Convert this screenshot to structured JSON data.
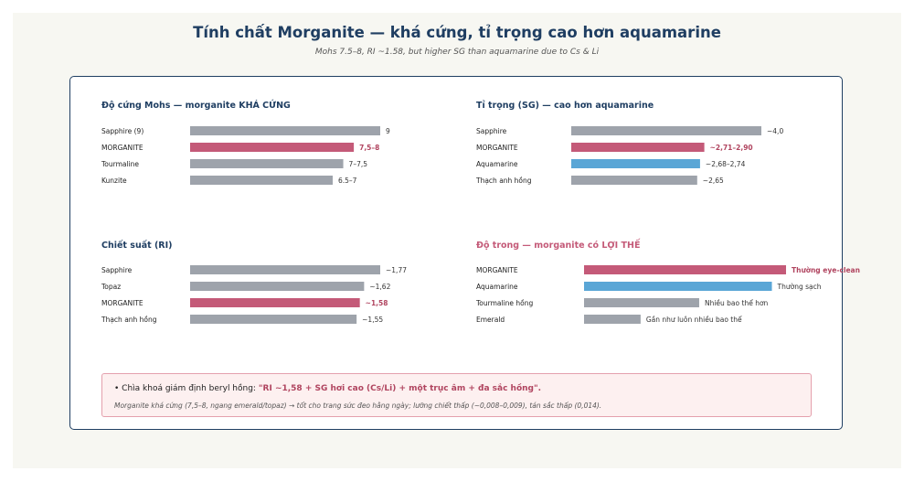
{
  "header": {
    "title": "Tính chất Morganite — khá cứng, tỉ trọng cao hơn aquamarine",
    "subtitle": "Mohs 7.5–8, RI ~1.58, but higher SG than aquamarine due to Cs & Li"
  },
  "colors": {
    "default_bar": "#9ea3ab",
    "highlight_bar": "#c45a78",
    "aquamarine_bar": "#5aa6d6",
    "panel_title": "#1f3e62",
    "highlight_text": "#b0445f"
  },
  "chart_data": [
    {
      "type": "bar",
      "orientation": "horizontal",
      "title": "Độ cứng Mohs — morganite KHÁ CỨNG",
      "title_color": "#1f3e62",
      "categories": [
        "Sapphire (9)",
        "MORGANITE",
        "Tourmaline",
        "Kunzite"
      ],
      "values": [
        9,
        7.75,
        7.25,
        6.75
      ],
      "value_labels": [
        "9",
        "7,5–8",
        "7–7,5",
        "6.5–7"
      ],
      "highlight": [
        false,
        true,
        false,
        false
      ],
      "bar_colors": [
        "#9ea3ab",
        "#c45a78",
        "#9ea3ab",
        "#9ea3ab"
      ]
    },
    {
      "type": "bar",
      "orientation": "horizontal",
      "title": "Tỉ trọng (SG) — cao hơn aquamarine",
      "title_color": "#1f3e62",
      "categories": [
        "Sapphire",
        "MORGANITE",
        "Aquamarine",
        "Thạch anh hồng"
      ],
      "values": [
        4.0,
        2.8,
        2.71,
        2.65
      ],
      "value_labels": [
        "~4,0",
        "~2,71–2,90",
        "~2,68–2,74",
        "~2,65"
      ],
      "highlight": [
        false,
        true,
        false,
        false
      ],
      "bar_colors": [
        "#9ea3ab",
        "#c45a78",
        "#5aa6d6",
        "#9ea3ab"
      ]
    },
    {
      "type": "bar",
      "orientation": "horizontal",
      "title": "Chiết suất (RI)",
      "title_color": "#1f3e62",
      "categories": [
        "Sapphire",
        "Topaz",
        "MORGANITE",
        "Thạch anh hồng"
      ],
      "values": [
        1.77,
        1.62,
        1.58,
        1.55
      ],
      "value_labels": [
        "~1,77",
        "~1,62",
        "~1,58",
        "~1,55"
      ],
      "highlight": [
        false,
        false,
        true,
        false
      ],
      "bar_colors": [
        "#9ea3ab",
        "#9ea3ab",
        "#c45a78",
        "#9ea3ab"
      ]
    },
    {
      "type": "bar",
      "orientation": "horizontal",
      "title": "Độ trong — morganite có LỢI THẾ",
      "title_color": "#c45a78",
      "categories": [
        "MORGANITE",
        "Aquamarine",
        "Tourmaline hồng",
        "Emerald"
      ],
      "values": [
        1.0,
        0.93,
        0.57,
        0.28
      ],
      "value_labels": [
        "Thường eye-clean",
        "Thường sạch",
        "Nhiều bao thể hơn",
        "Gần như luôn nhiều bao thể"
      ],
      "highlight": [
        true,
        false,
        false,
        false
      ],
      "bar_colors": [
        "#c45a78",
        "#5aa6d6",
        "#9ea3ab",
        "#9ea3ab"
      ]
    }
  ],
  "note": {
    "main_prefix": "• Chìa khoá giám định beryl hồng: ",
    "main_highlight": "\"RI ~1,58 + SG hơi cao (Cs/Li) + một trục âm + đa sắc hồng\".",
    "sub": "Morganite khá cứng (7,5–8, ngang emerald/topaz) → tốt cho trang sức đeo hằng ngày; lưỡng chiết thấp (~0,008–0,009), tán sắc thấp (0,014)."
  }
}
